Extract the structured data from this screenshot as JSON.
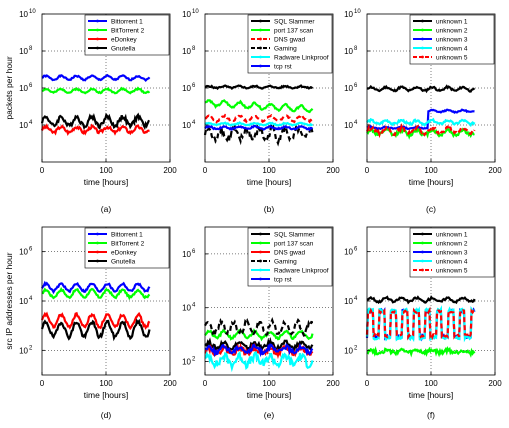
{
  "chart_data": [
    {
      "type": "line",
      "caption": "(a)",
      "xlabel": "time [hours]",
      "ylabel": "packets per hour",
      "log_y": true,
      "xlim": [
        0,
        200
      ],
      "ylim_exp": [
        2,
        10
      ],
      "yticks": [
        {
          "exp": 4,
          "label": "10"
        },
        {
          "exp": 6,
          "label": "10"
        },
        {
          "exp": 8,
          "label": "10"
        },
        {
          "exp": 10,
          "label": "10"
        }
      ],
      "ytick_sup": [
        "4",
        "6",
        "8",
        "10"
      ],
      "xticks": [
        "0",
        "100",
        "200"
      ],
      "legend_position": "top-right",
      "grid": true,
      "series": [
        {
          "name": "Bittorrent 1",
          "color": "#0000ff",
          "dash": "",
          "base": 6.55,
          "amp": 0.1,
          "period": 24,
          "noise": 0.04,
          "seed": 1
        },
        {
          "name": "BitTorrent 2",
          "color": "#00ff00",
          "dash": "",
          "base": 5.85,
          "amp": 0.1,
          "period": 24,
          "noise": 0.04,
          "seed": 2
        },
        {
          "name": "eDonkey",
          "color": "#ff0000",
          "dash": "",
          "base": 3.75,
          "amp": 0.15,
          "period": 24,
          "noise": 0.08,
          "seed": 3
        },
        {
          "name": "Gnutella",
          "color": "#000000",
          "dash": "",
          "base": 4.2,
          "amp": 0.25,
          "period": 24,
          "noise": 0.12,
          "seed": 4
        }
      ]
    },
    {
      "type": "line",
      "caption": "(b)",
      "xlabel": "time [hours]",
      "ylabel": "",
      "log_y": true,
      "xlim": [
        0,
        200
      ],
      "ylim_exp": [
        2,
        10
      ],
      "yticks": [
        {
          "exp": 4,
          "label": "10"
        },
        {
          "exp": 6,
          "label": "10"
        },
        {
          "exp": 8,
          "label": "10"
        },
        {
          "exp": 10,
          "label": "10"
        }
      ],
      "ytick_sup": [
        "4",
        "6",
        "8",
        "10"
      ],
      "xticks": [
        "0",
        "100",
        "200"
      ],
      "legend_position": "top-right",
      "grid": true,
      "series": [
        {
          "name": "SQL Slammer",
          "color": "#000000",
          "dash": "",
          "base": 6.05,
          "amp": 0.05,
          "period": 24,
          "noise": 0.04,
          "seed": 5
        },
        {
          "name": "port 137 scan",
          "color": "#00ff00",
          "dash": "",
          "base": 5.2,
          "amp": 0.15,
          "period": 24,
          "noise": 0.05,
          "seed": 6,
          "trend": -0.35
        },
        {
          "name": "DNS gwad",
          "color": "#ff0000",
          "dash": "5,3",
          "base": 4.35,
          "amp": 0.15,
          "period": 24,
          "noise": 0.05,
          "seed": 7
        },
        {
          "name": "Gaming",
          "color": "#000000",
          "dash": "5,3",
          "base": 3.5,
          "amp": 0.3,
          "period": 20,
          "noise": 0.2,
          "seed": 8
        },
        {
          "name": "Radware Linkproof",
          "color": "#00ffff",
          "dash": "",
          "base": 4.05,
          "amp": 0.05,
          "period": 24,
          "noise": 0.03,
          "seed": 9
        },
        {
          "name": "tcp rst",
          "color": "#0000ff",
          "dash": "",
          "base": 3.85,
          "amp": 0.06,
          "period": 24,
          "noise": 0.04,
          "seed": 10
        }
      ]
    },
    {
      "type": "line",
      "caption": "(c)",
      "xlabel": "time [hours]",
      "ylabel": "",
      "log_y": true,
      "xlim": [
        0,
        200
      ],
      "ylim_exp": [
        2,
        10
      ],
      "yticks": [
        {
          "exp": 4,
          "label": "10"
        },
        {
          "exp": 6,
          "label": "10"
        },
        {
          "exp": 8,
          "label": "10"
        },
        {
          "exp": 10,
          "label": "10"
        }
      ],
      "ytick_sup": [
        "4",
        "6",
        "8",
        "10"
      ],
      "xticks": [
        "0",
        "100",
        "200"
      ],
      "legend_position": "top-right",
      "grid": true,
      "series": [
        {
          "name": "unknown 1",
          "color": "#000000",
          "dash": "",
          "base": 5.95,
          "amp": 0.1,
          "period": 24,
          "noise": 0.05,
          "seed": 11
        },
        {
          "name": "unknown 2",
          "color": "#00ff00",
          "dash": "",
          "base": 3.6,
          "amp": 0.15,
          "period": 24,
          "noise": 0.1,
          "seed": 12
        },
        {
          "name": "unknown 3",
          "color": "#0000ff",
          "dash": "",
          "base": 3.85,
          "amp": 0.05,
          "period": 24,
          "noise": 0.03,
          "seed": 13,
          "step_at": 95,
          "step_to": 4.75
        },
        {
          "name": "unknown 4",
          "color": "#00ffff",
          "dash": "",
          "base": 4.15,
          "amp": 0.1,
          "period": 24,
          "noise": 0.06,
          "seed": 14
        },
        {
          "name": "unknown 5",
          "color": "#ff0000",
          "dash": "5,3",
          "base": 3.7,
          "amp": 0.15,
          "period": 24,
          "noise": 0.1,
          "seed": 15
        }
      ]
    },
    {
      "type": "line",
      "caption": "(d)",
      "xlabel": "time [hours]",
      "ylabel": "src IP addresses per hour",
      "log_y": true,
      "xlim": [
        0,
        200
      ],
      "ylim_exp": [
        1,
        7
      ],
      "yticks": [
        {
          "exp": 2,
          "label": "10"
        },
        {
          "exp": 4,
          "label": "10"
        },
        {
          "exp": 6,
          "label": "10"
        }
      ],
      "ytick_sup": [
        "2",
        "4",
        "6"
      ],
      "xticks": [
        "0",
        "100",
        "200"
      ],
      "legend_position": "top-right",
      "grid": true,
      "series": [
        {
          "name": "Bittorrent 1",
          "color": "#0000ff",
          "dash": "",
          "base": 4.55,
          "amp": 0.15,
          "period": 24,
          "noise": 0.04,
          "seed": 16
        },
        {
          "name": "BitTorrent 2",
          "color": "#00ff00",
          "dash": "",
          "base": 4.3,
          "amp": 0.15,
          "period": 24,
          "noise": 0.04,
          "seed": 17
        },
        {
          "name": "eDonkey",
          "color": "#ff0000",
          "dash": "",
          "base": 3.2,
          "amp": 0.25,
          "period": 24,
          "noise": 0.06,
          "seed": 18
        },
        {
          "name": "Gnutella",
          "color": "#000000",
          "dash": "",
          "base": 2.85,
          "amp": 0.3,
          "period": 24,
          "noise": 0.08,
          "seed": 19
        }
      ]
    },
    {
      "type": "line",
      "caption": "(e)",
      "xlabel": "time [hours]",
      "ylabel": "",
      "log_y": true,
      "xlim": [
        0,
        200
      ],
      "ylim_exp": [
        1.5,
        7
      ],
      "yticks": [
        {
          "exp": 2,
          "label": "10"
        },
        {
          "exp": 4,
          "label": "10"
        },
        {
          "exp": 6,
          "label": "10"
        }
      ],
      "ytick_sup": [
        "2",
        "4",
        "6"
      ],
      "xticks": [
        "0",
        "100",
        "200"
      ],
      "legend_position": "top-right",
      "grid": true,
      "series": [
        {
          "name": "SQL Slammer",
          "color": "#000000",
          "dash": "",
          "base": 2.6,
          "amp": 0.1,
          "period": 24,
          "noise": 0.08,
          "seed": 20
        },
        {
          "name": "port 137 scan",
          "color": "#00ff00",
          "dash": "",
          "base": 3.0,
          "amp": 0.12,
          "period": 24,
          "noise": 0.05,
          "seed": 21
        },
        {
          "name": "DNS gwad",
          "color": "#ff0000",
          "dash": "",
          "base": 2.4,
          "amp": 0.1,
          "period": 24,
          "noise": 0.1,
          "seed": 22
        },
        {
          "name": "Gaming",
          "color": "#000000",
          "dash": "5,3",
          "base": 3.25,
          "amp": 0.2,
          "period": 20,
          "noise": 0.1,
          "seed": 23
        },
        {
          "name": "Radware Linkproof",
          "color": "#00ffff",
          "dash": "",
          "base": 2.05,
          "amp": 0.15,
          "period": 24,
          "noise": 0.15,
          "seed": 24
        },
        {
          "name": "tcp rst",
          "color": "#0000ff",
          "dash": "",
          "base": 2.45,
          "amp": 0.1,
          "period": 24,
          "noise": 0.08,
          "seed": 25
        }
      ]
    },
    {
      "type": "line",
      "caption": "(f)",
      "xlabel": "time [hours]",
      "ylabel": "",
      "log_y": true,
      "xlim": [
        0,
        200
      ],
      "ylim_exp": [
        1,
        7
      ],
      "yticks": [
        {
          "exp": 2,
          "label": "10"
        },
        {
          "exp": 4,
          "label": "10"
        },
        {
          "exp": 6,
          "label": "10"
        }
      ],
      "ytick_sup": [
        "2",
        "4",
        "6"
      ],
      "xticks": [
        "0",
        "100",
        "200"
      ],
      "legend_position": "top-right",
      "grid": true,
      "series": [
        {
          "name": "unknown 1",
          "color": "#000000",
          "dash": "",
          "base": 4.05,
          "amp": 0.08,
          "period": 24,
          "noise": 0.04,
          "seed": 26
        },
        {
          "name": "unknown 2",
          "color": "#00ff00",
          "dash": "",
          "base": 1.95,
          "amp": 0.05,
          "period": 24,
          "noise": 0.08,
          "seed": 27
        },
        {
          "name": "unknown 3",
          "color": "#0000ff",
          "dash": "",
          "base": 3.2,
          "amp": 0.65,
          "period": 18,
          "noise": 0.06,
          "seed": 28,
          "sharp": true
        },
        {
          "name": "unknown 4",
          "color": "#00ffff",
          "dash": "",
          "base": 3.2,
          "amp": 0.7,
          "period": 18,
          "noise": 0.06,
          "seed": 29,
          "sharp": true
        },
        {
          "name": "unknown 5",
          "color": "#ff0000",
          "dash": "5,3",
          "base": 3.2,
          "amp": 0.6,
          "period": 18,
          "noise": 0.06,
          "seed": 30,
          "sharp": true
        }
      ]
    }
  ]
}
